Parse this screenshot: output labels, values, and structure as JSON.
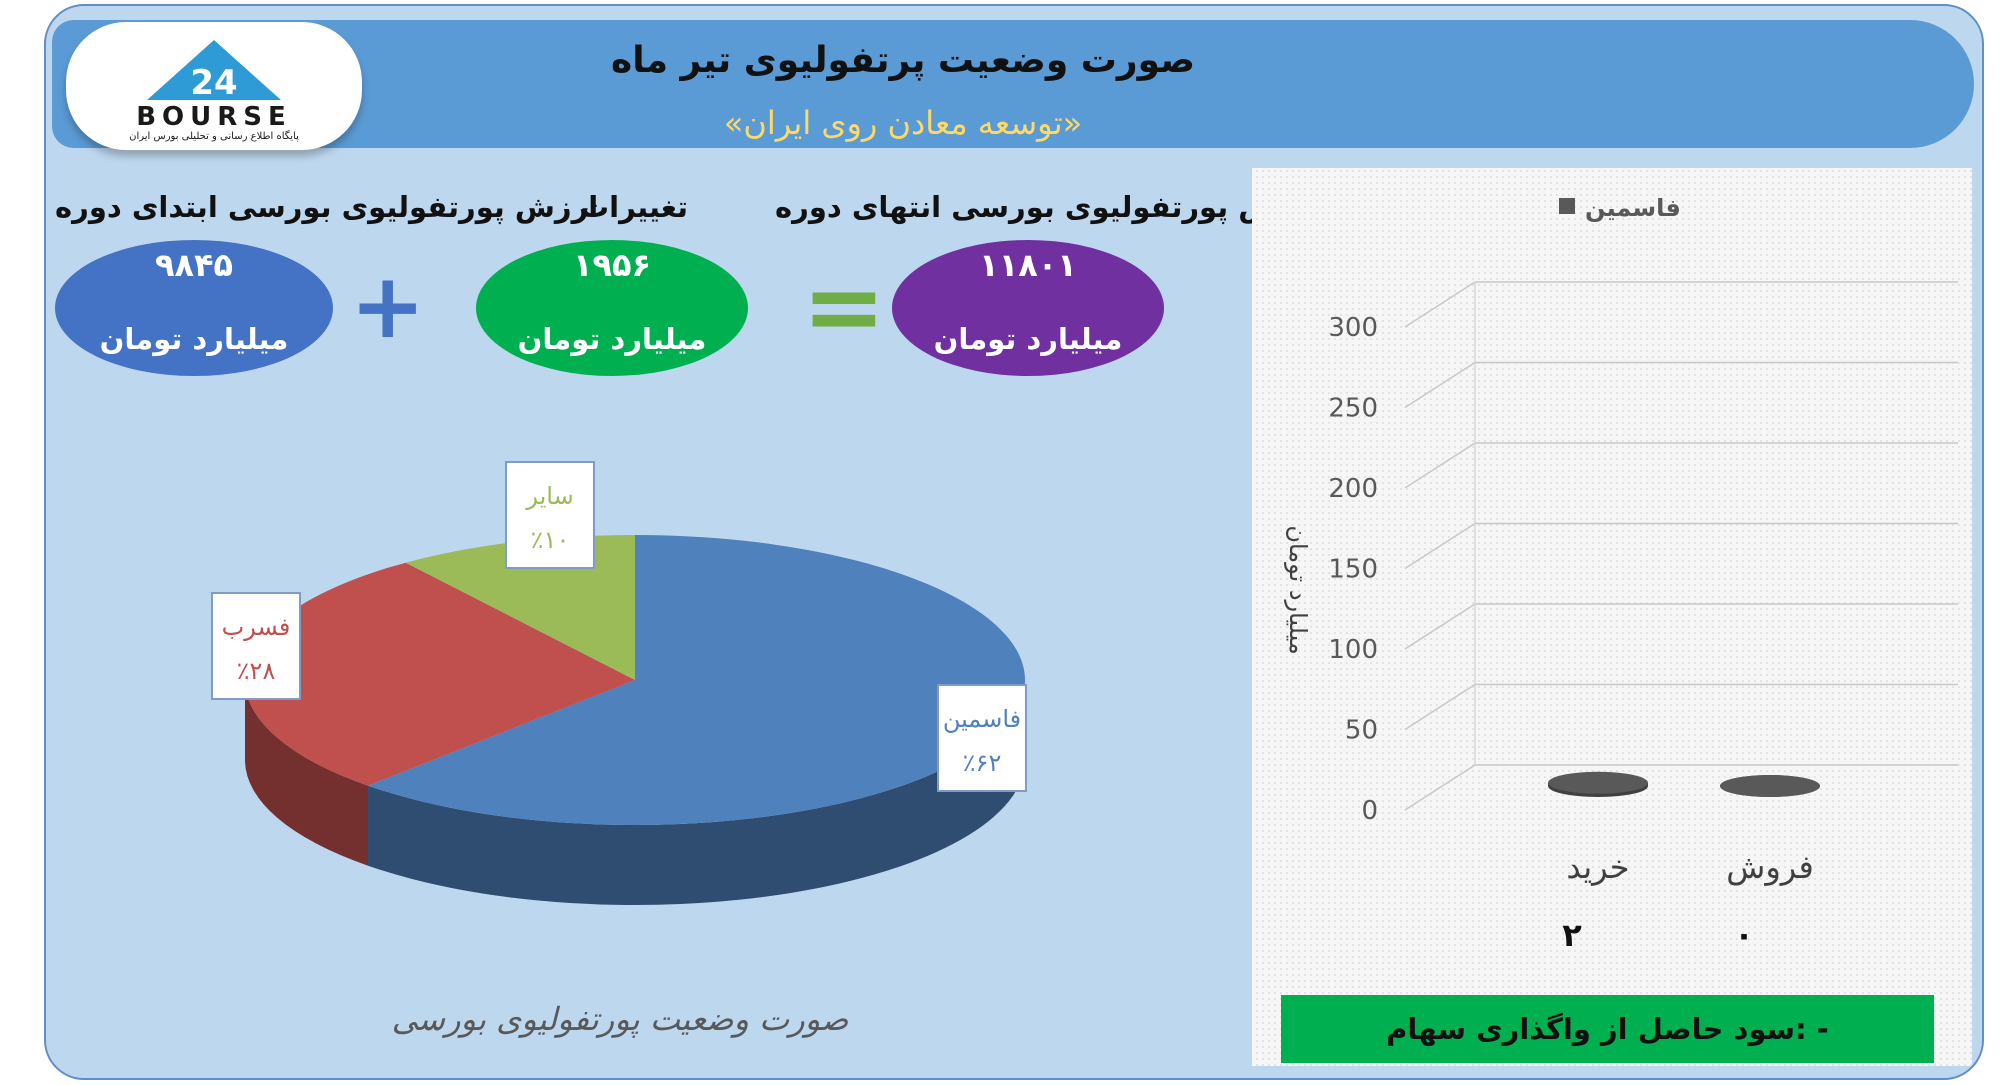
{
  "header": {
    "title": "صورت وضعیت پرتفولیوی تیر ماه",
    "subtitle": "«توسعه معادن روی ایران»",
    "logo_text": "BOURSE",
    "logo_number": "24",
    "logo_subtext": "پایگاه اطلاع رسانی و تحلیلی بورس ایران"
  },
  "summary": {
    "start": {
      "label": "ارزش پورتفولیوی بورسی ابتدای دوره",
      "value": "۹۸۴۵",
      "unit": "میلیارد تومان"
    },
    "change": {
      "label": "تغییرات",
      "value": "۱۹۵۶",
      "unit": "میلیارد تومان"
    },
    "end": {
      "label": "ارزش پورتفولیوی بورسی انتهای دوره",
      "value": "۱۱۸۰۱",
      "unit": "میلیارد تومان"
    },
    "plus_sign": "+",
    "equals_sign": "="
  },
  "colors": {
    "blue": "#4472c4",
    "green": "#00b050",
    "purple": "#7030a0",
    "pie_blue": "#4f81bd",
    "pie_red": "#c0504d",
    "pie_green": "#9bbb59"
  },
  "chart_data": [
    {
      "type": "pie",
      "title": "صورت وضعیت پورتفولیوی بورسی",
      "slices": [
        {
          "name": "فاسمین",
          "value": 62,
          "label": "٪۶۲"
        },
        {
          "name": "فسرب",
          "value": 28,
          "label": "٪۲۸"
        },
        {
          "name": "سایر",
          "value": 10,
          "label": "٪۱۰"
        }
      ]
    },
    {
      "type": "bar",
      "legend": "فاسمین",
      "ylabel": "میلیارد تومان",
      "categories": [
        "فروش",
        "خرید"
      ],
      "values": [
        0,
        2
      ],
      "value_labels": [
        "۰",
        "۲"
      ],
      "ylim": [
        0,
        300
      ],
      "yticks": [
        0,
        50,
        100,
        150,
        200,
        250,
        300
      ],
      "grid": true
    }
  ],
  "footer": {
    "sale_profit": "سود حاصل از واگذاری سهام: -"
  }
}
